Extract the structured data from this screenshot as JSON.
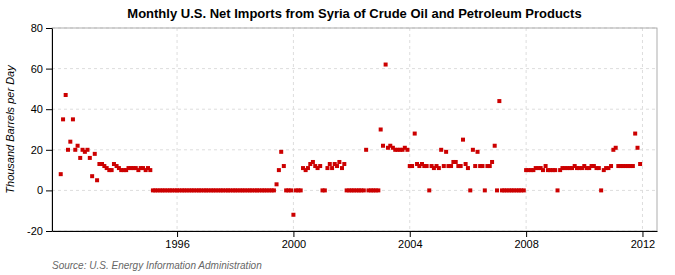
{
  "chart_data": {
    "type": "scatter",
    "title": "Monthly U.S. Net Imports from Syria of Crude Oil and Petroleum Products",
    "ylabel": "Thousand Barrels per Day",
    "source": "Source: U.S. Energy Information Administration",
    "color": "#cc0000",
    "marker": "square",
    "grid": true,
    "xlim": [
      1991.7,
      2012.5
    ],
    "xticks": [
      1996,
      2000,
      2004,
      2008,
      2012
    ],
    "ylim": [
      -20,
      80
    ],
    "yticks": [
      -20,
      0,
      20,
      40,
      60,
      80
    ],
    "x": [
      1992.0,
      1992.08,
      1992.17,
      1992.25,
      1992.33,
      1992.42,
      1992.5,
      1992.58,
      1992.67,
      1992.75,
      1992.83,
      1992.92,
      1993.0,
      1993.08,
      1993.17,
      1993.25,
      1993.33,
      1993.42,
      1993.5,
      1993.58,
      1993.67,
      1993.75,
      1993.83,
      1993.92,
      1994.0,
      1994.08,
      1994.17,
      1994.25,
      1994.33,
      1994.42,
      1994.5,
      1994.58,
      1994.67,
      1994.75,
      1994.83,
      1994.92,
      1995.0,
      1995.08,
      1995.17,
      1995.25,
      1995.33,
      1995.42,
      1995.5,
      1995.58,
      1995.67,
      1995.75,
      1995.83,
      1995.92,
      1996.0,
      1996.08,
      1996.17,
      1996.25,
      1996.33,
      1996.42,
      1996.5,
      1996.58,
      1996.67,
      1996.75,
      1996.83,
      1996.92,
      1997.0,
      1997.08,
      1997.17,
      1997.25,
      1997.33,
      1997.42,
      1997.5,
      1997.58,
      1997.67,
      1997.75,
      1997.83,
      1997.92,
      1998.0,
      1998.08,
      1998.17,
      1998.25,
      1998.33,
      1998.42,
      1998.5,
      1998.58,
      1998.67,
      1998.75,
      1998.83,
      1998.92,
      1999.0,
      1999.08,
      1999.17,
      1999.25,
      1999.33,
      1999.42,
      1999.5,
      1999.58,
      1999.67,
      1999.75,
      1999.83,
      1999.92,
      2000.0,
      2000.08,
      2000.17,
      2000.25,
      2000.33,
      2000.42,
      2000.5,
      2000.58,
      2000.67,
      2000.75,
      2000.83,
      2000.92,
      2001.0,
      2001.08,
      2001.17,
      2001.25,
      2001.33,
      2001.42,
      2001.5,
      2001.58,
      2001.67,
      2001.75,
      2001.83,
      2001.92,
      2002.0,
      2002.08,
      2002.17,
      2002.25,
      2002.33,
      2002.42,
      2002.5,
      2002.58,
      2002.67,
      2002.75,
      2002.83,
      2002.92,
      2003.0,
      2003.08,
      2003.17,
      2003.25,
      2003.33,
      2003.42,
      2003.5,
      2003.58,
      2003.67,
      2003.75,
      2003.83,
      2003.92,
      2004.0,
      2004.08,
      2004.17,
      2004.25,
      2004.33,
      2004.42,
      2004.5,
      2004.58,
      2004.67,
      2004.75,
      2004.83,
      2004.92,
      2005.0,
      2005.08,
      2005.17,
      2005.25,
      2005.33,
      2005.42,
      2005.5,
      2005.58,
      2005.67,
      2005.75,
      2005.83,
      2005.92,
      2006.0,
      2006.08,
      2006.17,
      2006.25,
      2006.33,
      2006.42,
      2006.5,
      2006.58,
      2006.67,
      2006.75,
      2006.83,
      2006.92,
      2007.0,
      2007.08,
      2007.17,
      2007.25,
      2007.33,
      2007.42,
      2007.5,
      2007.58,
      2007.67,
      2007.75,
      2007.83,
      2007.92,
      2008.0,
      2008.08,
      2008.17,
      2008.25,
      2008.33,
      2008.42,
      2008.5,
      2008.58,
      2008.67,
      2008.75,
      2008.83,
      2008.92,
      2009.0,
      2009.08,
      2009.17,
      2009.25,
      2009.33,
      2009.42,
      2009.5,
      2009.58,
      2009.67,
      2009.75,
      2009.83,
      2009.92,
      2010.0,
      2010.08,
      2010.17,
      2010.25,
      2010.33,
      2010.42,
      2010.5,
      2010.58,
      2010.67,
      2010.75,
      2010.83,
      2010.92,
      2011.0,
      2011.08,
      2011.17,
      2011.25,
      2011.33,
      2011.42,
      2011.5,
      2011.58,
      2011.67,
      2011.75,
      2011.83,
      2011.92
    ],
    "values": [
      8,
      35,
      47,
      20,
      24,
      35,
      20,
      22,
      16,
      20,
      19,
      20,
      16,
      7,
      18,
      5,
      13,
      13,
      12,
      11,
      10,
      10,
      13,
      12,
      11,
      10,
      10,
      10,
      11,
      11,
      11,
      11,
      10,
      11,
      11,
      10,
      11,
      10,
      0,
      0,
      0,
      0,
      0,
      0,
      0,
      0,
      0,
      0,
      0,
      0,
      0,
      0,
      0,
      0,
      0,
      0,
      0,
      0,
      0,
      0,
      0,
      0,
      0,
      0,
      0,
      0,
      0,
      0,
      0,
      0,
      0,
      0,
      0,
      0,
      0,
      0,
      0,
      0,
      0,
      0,
      0,
      0,
      0,
      0,
      0,
      0,
      0,
      0,
      0,
      3,
      10,
      19,
      12,
      0,
      0,
      0,
      -12,
      0,
      0,
      0,
      11,
      10,
      11,
      13,
      14,
      12,
      11,
      12,
      0,
      0,
      11,
      13,
      11,
      13,
      12,
      14,
      11,
      13,
      0,
      0,
      0,
      0,
      0,
      0,
      0,
      0,
      20,
      0,
      0,
      0,
      0,
      0,
      30,
      22,
      62,
      21,
      22,
      21,
      20,
      20,
      20,
      20,
      21,
      20,
      12,
      12,
      28,
      13,
      12,
      13,
      12,
      12,
      0,
      12,
      11,
      12,
      11,
      20,
      12,
      19,
      12,
      12,
      14,
      14,
      12,
      12,
      25,
      13,
      11,
      0,
      20,
      12,
      19,
      12,
      12,
      0,
      12,
      12,
      14,
      22,
      0,
      44,
      0,
      0,
      0,
      0,
      0,
      0,
      0,
      0,
      0,
      0,
      10,
      10,
      10,
      10,
      11,
      11,
      11,
      10,
      12,
      10,
      10,
      10,
      10,
      0,
      10,
      11,
      11,
      11,
      11,
      11,
      12,
      11,
      11,
      11,
      12,
      11,
      11,
      12,
      12,
      11,
      11,
      0,
      10,
      11,
      11,
      12,
      20,
      21,
      12,
      12,
      12,
      12,
      12,
      12,
      12,
      28,
      21,
      13
    ]
  }
}
